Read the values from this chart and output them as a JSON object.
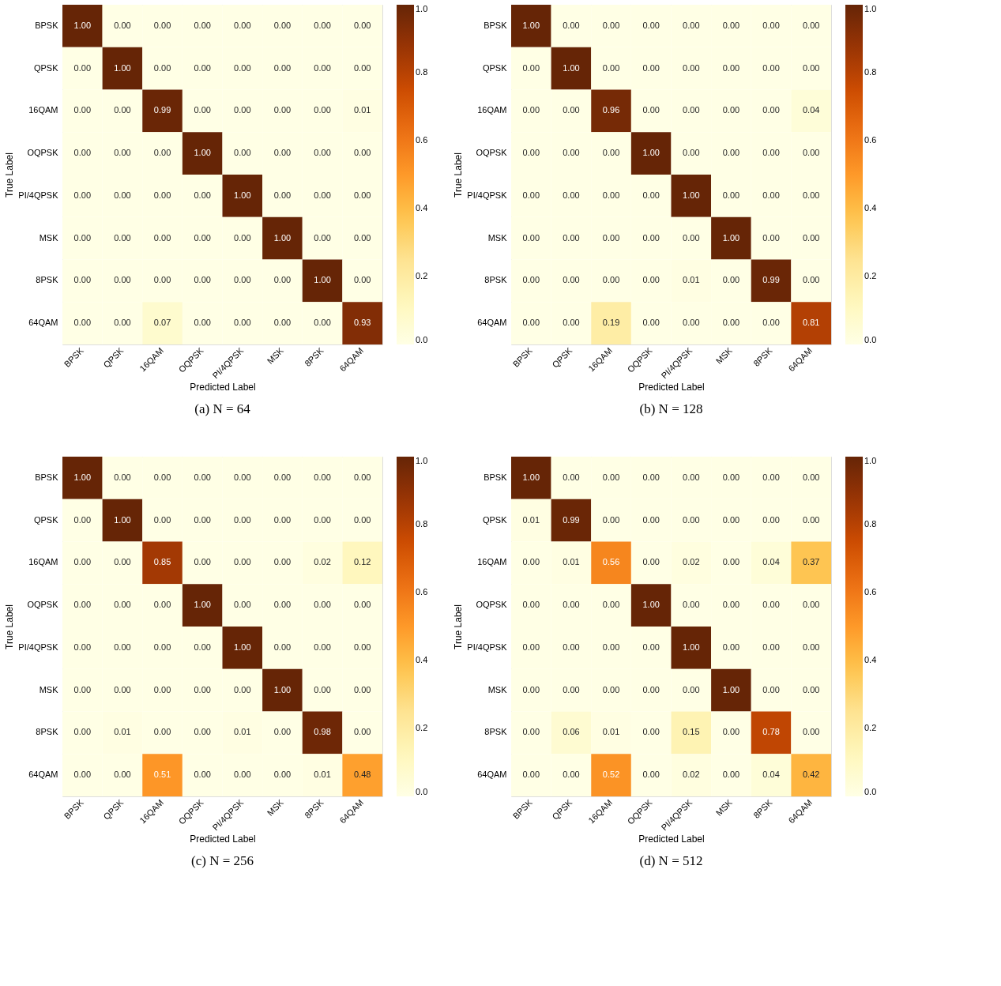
{
  "chart_data": [
    {
      "type": "heatmap",
      "title": "(a) N = 64",
      "xlabel": "Predicted Label",
      "ylabel": "True Label",
      "categories": [
        "BPSK",
        "QPSK",
        "16QAM",
        "OQPSK",
        "PI/4QPSK",
        "MSK",
        "8PSK",
        "64QAM"
      ],
      "y_categories": [
        "BPSK",
        "QPSK",
        "16QAM",
        "OQPSK",
        "PI/4QPSK",
        "MSK",
        "8PSK",
        "64QAM"
      ],
      "clim": [
        0,
        1
      ],
      "cticks": [
        {
          "value": 0,
          "label": "0.0"
        },
        {
          "value": 0.2,
          "label": "0.2"
        },
        {
          "value": 0.4,
          "label": "0.4"
        },
        {
          "value": 0.6,
          "label": "0.6"
        },
        {
          "value": 0.8,
          "label": "0.8"
        },
        {
          "value": 1,
          "label": "1.0"
        }
      ],
      "cells": [
        [
          1.0,
          0,
          0,
          0,
          0,
          0,
          0,
          0
        ],
        [
          0,
          1.0,
          0,
          0,
          0,
          0,
          0,
          0
        ],
        [
          0,
          0,
          0.99,
          0,
          0,
          0,
          0,
          0.01
        ],
        [
          0,
          0,
          0,
          1.0,
          0,
          0,
          0,
          0
        ],
        [
          0,
          0,
          0,
          0,
          1.0,
          0,
          0,
          0
        ],
        [
          0,
          0,
          0,
          0,
          0,
          1.0,
          0,
          0
        ],
        [
          0,
          0,
          0,
          0,
          0,
          0,
          1.0,
          0
        ],
        [
          0,
          0,
          0.07,
          0,
          0,
          0,
          0,
          0.93
        ]
      ],
      "cell_labels": [
        [
          "1.00",
          "0.00",
          "0.00",
          "0.00",
          "0.00",
          "0.00",
          "0.00",
          "0.00"
        ],
        [
          "0.00",
          "1.00",
          "0.00",
          "0.00",
          "0.00",
          "0.00",
          "0.00",
          "0.00"
        ],
        [
          "0.00",
          "0.00",
          "0.99",
          "0.00",
          "0.00",
          "0.00",
          "0.00",
          "0.01"
        ],
        [
          "0.00",
          "0.00",
          "0.00",
          "1.00",
          "0.00",
          "0.00",
          "0.00",
          "0.00"
        ],
        [
          "0.00",
          "0.00",
          "0.00",
          "0.00",
          "1.00",
          "0.00",
          "0.00",
          "0.00"
        ],
        [
          "0.00",
          "0.00",
          "0.00",
          "0.00",
          "0.00",
          "1.00",
          "0.00",
          "0.00"
        ],
        [
          "0.00",
          "0.00",
          "0.00",
          "0.00",
          "0.00",
          "0.00",
          "1.00",
          "0.00"
        ],
        [
          "0.00",
          "0.00",
          "0.07",
          "0.00",
          "0.00",
          "0.00",
          "0.00",
          "0.93"
        ]
      ]
    },
    {
      "type": "heatmap",
      "title": "(b) N = 128",
      "xlabel": "Predicted Label",
      "ylabel": "True Label",
      "categories": [
        "BPSK",
        "QPSK",
        "16QAM",
        "OQPSK",
        "PI/4QPSK",
        "MSK",
        "8PSK",
        "64QAM"
      ],
      "y_categories": [
        "BPSK",
        "QPSK",
        "16QAM",
        "OQPSK",
        "PI/4QPSK",
        "MSK",
        "8PSK",
        "64QAM"
      ],
      "clim": [
        0,
        1
      ],
      "cticks": [
        {
          "value": 0,
          "label": "0.0"
        },
        {
          "value": 0.2,
          "label": "0.2"
        },
        {
          "value": 0.4,
          "label": "0.4"
        },
        {
          "value": 0.6,
          "label": "0.6"
        },
        {
          "value": 0.8,
          "label": "0.8"
        },
        {
          "value": 1,
          "label": "1.0"
        }
      ],
      "cells": [
        [
          1.0,
          0,
          0,
          0,
          0,
          0,
          0,
          0
        ],
        [
          0,
          1.0,
          0,
          0,
          0,
          0,
          0,
          0
        ],
        [
          0,
          0,
          0.96,
          0,
          0,
          0,
          0,
          0.04
        ],
        [
          0,
          0,
          0,
          1.0,
          0,
          0,
          0,
          0
        ],
        [
          0,
          0,
          0,
          0,
          1.0,
          0,
          0,
          0
        ],
        [
          0,
          0,
          0,
          0,
          0,
          1.0,
          0,
          0
        ],
        [
          0,
          0,
          0,
          0,
          0.01,
          0,
          0.99,
          0
        ],
        [
          0,
          0,
          0.19,
          0,
          0,
          0,
          0,
          0.81
        ]
      ],
      "cell_labels": [
        [
          "1.00",
          "0.00",
          "0.00",
          "0.00",
          "0.00",
          "0.00",
          "0.00",
          "0.00"
        ],
        [
          "0.00",
          "1.00",
          "0.00",
          "0.00",
          "0.00",
          "0.00",
          "0.00",
          "0.00"
        ],
        [
          "0.00",
          "0.00",
          "0.96",
          "0.00",
          "0.00",
          "0.00",
          "0.00",
          "0.04"
        ],
        [
          "0.00",
          "0.00",
          "0.00",
          "1.00",
          "0.00",
          "0.00",
          "0.00",
          "0.00"
        ],
        [
          "0.00",
          "0.00",
          "0.00",
          "0.00",
          "1.00",
          "0.00",
          "0.00",
          "0.00"
        ],
        [
          "0.00",
          "0.00",
          "0.00",
          "0.00",
          "0.00",
          "1.00",
          "0.00",
          "0.00"
        ],
        [
          "0.00",
          "0.00",
          "0.00",
          "0.00",
          "0.01",
          "0.00",
          "0.99",
          "0.00"
        ],
        [
          "0.00",
          "0.00",
          "0.19",
          "0.00",
          "0.00",
          "0.00",
          "0.00",
          "0.81"
        ]
      ]
    },
    {
      "type": "heatmap",
      "title": "(c) N = 256",
      "xlabel": "Predicted Label",
      "ylabel": "True Label",
      "categories": [
        "BPSK",
        "QPSK",
        "16QAM",
        "OQPSK",
        "PI/4QPSK",
        "MSK",
        "8PSK",
        "64QAM"
      ],
      "y_categories": [
        "BPSK",
        "QPSK",
        "16QAM",
        "OQPSK",
        "PI/4QPSK",
        "MSK",
        "8PSK",
        "64QAM"
      ],
      "clim": [
        0,
        1
      ],
      "cticks": [
        {
          "value": 0,
          "label": "0.0"
        },
        {
          "value": 0.2,
          "label": "0.2"
        },
        {
          "value": 0.4,
          "label": "0.4"
        },
        {
          "value": 0.6,
          "label": "0.6"
        },
        {
          "value": 0.8,
          "label": "0.8"
        },
        {
          "value": 1,
          "label": "1.0"
        }
      ],
      "cells": [
        [
          1.0,
          0,
          0,
          0,
          0,
          0,
          0,
          0
        ],
        [
          0,
          1.0,
          0,
          0,
          0,
          0,
          0,
          0
        ],
        [
          0,
          0,
          0.85,
          0,
          0,
          0,
          0.02,
          0.12
        ],
        [
          0,
          0,
          0,
          1.0,
          0,
          0,
          0,
          0
        ],
        [
          0,
          0,
          0,
          0,
          1.0,
          0,
          0,
          0
        ],
        [
          0,
          0,
          0,
          0,
          0,
          1.0,
          0,
          0
        ],
        [
          0,
          0.01,
          0,
          0,
          0.01,
          0,
          0.98,
          0
        ],
        [
          0,
          0,
          0.51,
          0,
          0,
          0,
          0.01,
          0.48
        ]
      ],
      "cell_labels": [
        [
          "1.00",
          "0.00",
          "0.00",
          "0.00",
          "0.00",
          "0.00",
          "0.00",
          "0.00"
        ],
        [
          "0.00",
          "1.00",
          "0.00",
          "0.00",
          "0.00",
          "0.00",
          "0.00",
          "0.00"
        ],
        [
          "0.00",
          "0.00",
          "0.85",
          "0.00",
          "0.00",
          "0.00",
          "0.02",
          "0.12"
        ],
        [
          "0.00",
          "0.00",
          "0.00",
          "1.00",
          "0.00",
          "0.00",
          "0.00",
          "0.00"
        ],
        [
          "0.00",
          "0.00",
          "0.00",
          "0.00",
          "1.00",
          "0.00",
          "0.00",
          "0.00"
        ],
        [
          "0.00",
          "0.00",
          "0.00",
          "0.00",
          "0.00",
          "1.00",
          "0.00",
          "0.00"
        ],
        [
          "0.00",
          "0.01",
          "0.00",
          "0.00",
          "0.01",
          "0.00",
          "0.98",
          "0.00"
        ],
        [
          "0.00",
          "0.00",
          "0.51",
          "0.00",
          "0.00",
          "0.00",
          "0.01",
          "0.48"
        ]
      ]
    },
    {
      "type": "heatmap",
      "title": "(d) N = 512",
      "xlabel": "Predicted Label",
      "ylabel": "True Label",
      "categories": [
        "BPSK",
        "QPSK",
        "16QAM",
        "OQPSK",
        "PI/4QPSK",
        "MSK",
        "8PSK",
        "64QAM"
      ],
      "y_categories": [
        "BPSK",
        "QPSK",
        "16QAM",
        "OQPSK",
        "PI/4QPSK",
        "MSK",
        "8PSK",
        "64QAM"
      ],
      "clim": [
        0,
        1
      ],
      "cticks": [
        {
          "value": 0,
          "label": "0.0"
        },
        {
          "value": 0.2,
          "label": "0.2"
        },
        {
          "value": 0.4,
          "label": "0.4"
        },
        {
          "value": 0.6,
          "label": "0.6"
        },
        {
          "value": 0.8,
          "label": "0.8"
        },
        {
          "value": 1,
          "label": "1.0"
        }
      ],
      "cells": [
        [
          1.0,
          0,
          0,
          0,
          0,
          0,
          0,
          0
        ],
        [
          0.01,
          0.99,
          0,
          0,
          0,
          0,
          0,
          0
        ],
        [
          0,
          0.01,
          0.56,
          0,
          0.02,
          0,
          0.04,
          0.37
        ],
        [
          0,
          0,
          0,
          1.0,
          0,
          0,
          0,
          0
        ],
        [
          0,
          0,
          0,
          0,
          1.0,
          0,
          0,
          0
        ],
        [
          0,
          0,
          0,
          0,
          0,
          1.0,
          0,
          0
        ],
        [
          0,
          0.06,
          0.01,
          0,
          0.15,
          0,
          0.78,
          0
        ],
        [
          0,
          0,
          0.52,
          0,
          0.02,
          0,
          0.04,
          0.42
        ]
      ],
      "cell_labels": [
        [
          "1.00",
          "0.00",
          "0.00",
          "0.00",
          "0.00",
          "0.00",
          "0.00",
          "0.00"
        ],
        [
          "0.01",
          "0.99",
          "0.00",
          "0.00",
          "0.00",
          "0.00",
          "0.00",
          "0.00"
        ],
        [
          "0.00",
          "0.01",
          "0.56",
          "0.00",
          "0.02",
          "0.00",
          "0.04",
          "0.37"
        ],
        [
          "0.00",
          "0.00",
          "0.00",
          "1.00",
          "0.00",
          "0.00",
          "0.00",
          "0.00"
        ],
        [
          "0.00",
          "0.00",
          "0.00",
          "0.00",
          "1.00",
          "0.00",
          "0.00",
          "0.00"
        ],
        [
          "0.00",
          "0.00",
          "0.00",
          "0.00",
          "0.00",
          "1.00",
          "0.00",
          "0.00"
        ],
        [
          "0.00",
          "0.06",
          "0.01",
          "0.00",
          "0.15",
          "0.00",
          "0.78",
          "0.00"
        ],
        [
          "0.00",
          "0.00",
          "0.52",
          "0.00",
          "0.02",
          "0.00",
          "0.04",
          "0.42"
        ]
      ]
    }
  ]
}
